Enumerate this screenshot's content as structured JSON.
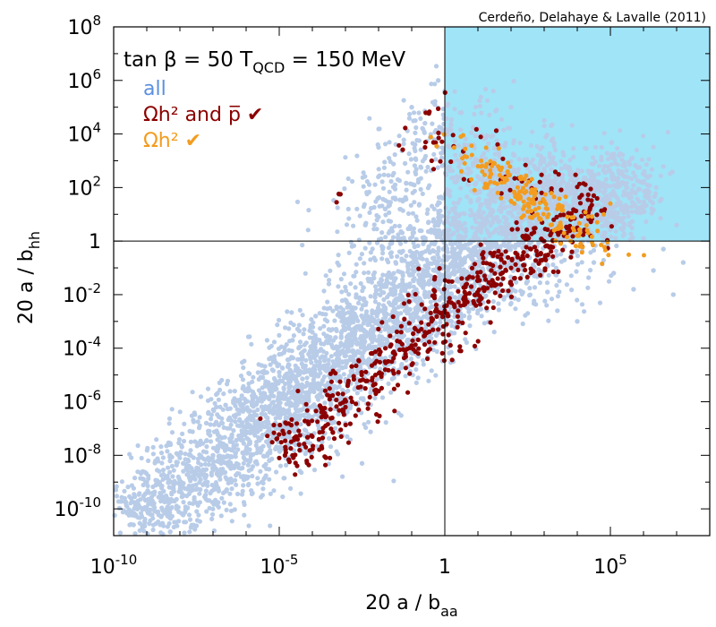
{
  "credit": "Cerdeño, Delahaye & Lavalle (2011)",
  "annotation_prefix": "tan β = 50  T",
  "annotation_sub": "QCD",
  "annotation_suffix": " = 150 MeV",
  "colors": {
    "all": "#b8cce8",
    "relic_and_pbar": "#8b0000",
    "relic": "#f39c1f",
    "region": "#a0e4f8",
    "legend_all": "#5b8fe0"
  },
  "chart_data": {
    "type": "scatter",
    "xlabel_main": "20 a / b",
    "xlabel_sub": "aa",
    "ylabel_main": "20 a / b",
    "ylabel_sub": "hh",
    "x_scale": "log",
    "y_scale": "log",
    "xlim": [
      1e-10,
      100000000.0
    ],
    "ylim": [
      1e-11,
      100000000.0
    ],
    "x_ticks": [
      {
        "value": 1e-10,
        "base": "10",
        "exp": "-10"
      },
      {
        "value": 1e-05,
        "base": "10",
        "exp": "-5"
      },
      {
        "value": 1,
        "base": "1",
        "exp": ""
      },
      {
        "value": 100000.0,
        "base": "10",
        "exp": "5"
      }
    ],
    "y_ticks": [
      {
        "value": 100000000.0,
        "base": "10",
        "exp": "8"
      },
      {
        "value": 1000000.0,
        "base": "10",
        "exp": "6"
      },
      {
        "value": 10000.0,
        "base": "10",
        "exp": "4"
      },
      {
        "value": 100.0,
        "base": "10",
        "exp": "2"
      },
      {
        "value": 1,
        "base": "1",
        "exp": ""
      },
      {
        "value": 0.01,
        "base": "10",
        "exp": "-2"
      },
      {
        "value": 0.0001,
        "base": "10",
        "exp": "-4"
      },
      {
        "value": 1e-06,
        "base": "10",
        "exp": "-6"
      },
      {
        "value": 1e-08,
        "base": "10",
        "exp": "-8"
      },
      {
        "value": 1e-10,
        "base": "10",
        "exp": "-10"
      }
    ],
    "reference_lines": {
      "x": 1,
      "y": 1
    },
    "highlight_region": {
      "x_min": 1,
      "x_max": 100000000.0,
      "y_min": 1,
      "y_max": 100000000.0
    },
    "legend_position": "top-left",
    "series": [
      {
        "name": "all",
        "legend_label": "all",
        "color": "#b8cce8",
        "trend": [
          [
            -9.5,
            -10.5
          ],
          [
            -8,
            -9.3
          ],
          [
            -6,
            -7.5
          ],
          [
            -4,
            -5.2
          ],
          [
            -2,
            -3.2
          ],
          [
            0,
            -1.2
          ],
          [
            2,
            0.8
          ],
          [
            3,
            2
          ],
          [
            4,
            2.3
          ],
          [
            6,
            1
          ]
        ],
        "spread_perp": 0.9,
        "fill_points": [
          [
            -5.2,
            -6.5
          ],
          [
            -4,
            -5.5
          ],
          [
            -2.5,
            -4
          ],
          [
            -1.5,
            -2
          ],
          [
            -1,
            2.5
          ],
          [
            0,
            4
          ],
          [
            1,
            3
          ],
          [
            2,
            1.5
          ],
          [
            3,
            -1
          ],
          [
            -1,
            -3.5
          ],
          [
            0.5,
            -1.5
          ],
          [
            1.5,
            -1
          ],
          [
            -2,
            1
          ],
          [
            -0.5,
            0.5
          ]
        ],
        "cloud_points": [
          [
            -9.8,
            -10.9
          ],
          [
            -9.4,
            -10.6
          ],
          [
            -8.9,
            -10.2
          ],
          [
            -8.5,
            -9.6
          ],
          [
            -8.2,
            -9.7
          ],
          [
            -7.6,
            -8.8
          ],
          [
            -7.9,
            -8.3
          ],
          [
            -7.3,
            -9.1
          ],
          [
            -7,
            -8.0
          ],
          [
            -6.8,
            -7.3
          ],
          [
            -6.5,
            -8.4
          ],
          [
            -6.2,
            -6.9
          ],
          [
            -6.0,
            -7.8
          ],
          [
            -5.7,
            -6.1
          ],
          [
            -5.4,
            -7.2
          ],
          [
            -5.1,
            -5.5
          ],
          [
            -4.8,
            -6.6
          ],
          [
            -4.5,
            -4.8
          ],
          [
            -4.2,
            -6.0
          ],
          [
            -3.9,
            -4.1
          ],
          [
            -3.6,
            -5.4
          ],
          [
            -3.3,
            -3.6
          ],
          [
            -3.0,
            -4.7
          ],
          [
            -2.7,
            -2.8
          ],
          [
            -2.4,
            -4.0
          ],
          [
            -2.1,
            -2.0
          ],
          [
            -1.8,
            -3.3
          ],
          [
            -1.5,
            -1.4
          ],
          [
            -1.2,
            -2.6
          ],
          [
            -0.9,
            -0.6
          ],
          [
            -0.6,
            -1.9
          ],
          [
            -0.3,
            0.3
          ],
          [
            0.0,
            -1.4
          ],
          [
            0.3,
            1.1
          ],
          [
            0.6,
            -0.7
          ],
          [
            0.9,
            1.8
          ],
          [
            1.2,
            -0.3
          ],
          [
            1.5,
            2.5
          ],
          [
            1.8,
            0.4
          ],
          [
            2.1,
            3.2
          ],
          [
            2.4,
            1.0
          ],
          [
            2.7,
            2.8
          ],
          [
            3.0,
            0.2
          ],
          [
            3.3,
            2.0
          ],
          [
            3.6,
            1.2
          ],
          [
            3.9,
            -0.4
          ],
          [
            4.2,
            1.6
          ],
          [
            4.5,
            -0.8
          ],
          [
            4.8,
            0.9
          ],
          [
            5.1,
            -1.2
          ],
          [
            5.4,
            0.5
          ],
          [
            5.7,
            -1.8
          ],
          [
            6.0,
            0.1
          ],
          [
            6.3,
            -1.1
          ],
          [
            6.6,
            -0.3
          ],
          [
            6.9,
            -2.0
          ],
          [
            7.2,
            -0.8
          ],
          [
            -1.8,
            1.2
          ],
          [
            -1.5,
            2.1
          ],
          [
            -1.2,
            2.9
          ],
          [
            -0.9,
            3.6
          ],
          [
            -0.6,
            4.4
          ],
          [
            -0.3,
            5.1
          ],
          [
            0.0,
            5.6
          ],
          [
            -0.2,
            6.0
          ],
          [
            0.5,
            4.8
          ],
          [
            1.0,
            4.2
          ],
          [
            -2.4,
            0.6
          ],
          [
            -2.8,
            -0.2
          ],
          [
            -3.2,
            -0.9
          ],
          [
            -3.5,
            -1.6
          ],
          [
            -2.0,
            3.5
          ],
          [
            -1.0,
            5.0
          ],
          [
            -3.9,
            -2.8
          ],
          [
            -4.6,
            -3.7
          ],
          [
            -5.3,
            -4.4
          ],
          [
            -6.1,
            -5.5
          ],
          [
            -6.9,
            -6.2
          ],
          [
            -7.7,
            -7.1
          ],
          [
            -8.3,
            -8.0
          ],
          [
            0.2,
            -3.0
          ],
          [
            1.0,
            -2.6
          ],
          [
            1.8,
            -2.1
          ],
          [
            2.5,
            -1.5
          ],
          [
            3.1,
            -1.9
          ],
          [
            -0.5,
            -3.8
          ],
          [
            -1.3,
            -4.6
          ],
          [
            -2.1,
            -5.3
          ],
          [
            -2.9,
            -6.2
          ],
          [
            -3.7,
            -7.0
          ],
          [
            -4.5,
            -7.6
          ],
          [
            -5.3,
            -8.2
          ],
          [
            -6.0,
            -8.8
          ],
          [
            -2.5,
            -8.3
          ],
          [
            3.4,
            -2.6
          ],
          [
            4.0,
            -3.0
          ],
          [
            -9.0,
            -9.0
          ],
          [
            -8.6,
            -9.1
          ],
          [
            -7.4,
            -7.6
          ],
          [
            2.0,
            5.0
          ],
          [
            3.0,
            4.5
          ],
          [
            5.5,
            2.0
          ],
          [
            6.5,
            1.5
          ],
          [
            7.0,
            0.6
          ],
          [
            -6.5,
            -6.6
          ],
          [
            -5.8,
            -5.9
          ],
          [
            -5.0,
            -4.9
          ],
          [
            -4.3,
            -4.3
          ],
          [
            -3.5,
            -3.3
          ],
          [
            -2.7,
            -2.5
          ],
          [
            -1.9,
            -1.7
          ],
          [
            -1.1,
            -0.9
          ],
          [
            -0.4,
            -0.1
          ],
          [
            0.4,
            0.6
          ],
          [
            1.3,
            1.3
          ],
          [
            2.2,
            2.1
          ],
          [
            3.0,
            2.7
          ],
          [
            3.8,
            2.5
          ],
          [
            4.6,
            2.2
          ],
          [
            5.2,
            1.4
          ],
          [
            0.6,
            3.6
          ],
          [
            1.4,
            3.9
          ],
          [
            -0.8,
            2.2
          ],
          [
            -1.6,
            0.0
          ],
          [
            -3.0,
            -2.2
          ],
          [
            -4.0,
            -3.4
          ],
          [
            -5.5,
            -5.1
          ],
          [
            -7.2,
            -6.8
          ]
        ]
      },
      {
        "name": "relic_and_pbar",
        "legend_label": "Ωh² and p̅ ✔",
        "color": "#8b0000",
        "trend": [
          [
            -5,
            -8
          ],
          [
            -3,
            -6
          ],
          [
            -1,
            -3.8
          ],
          [
            1,
            -1.5
          ],
          [
            2,
            -1
          ],
          [
            3,
            -0.3
          ],
          [
            4,
            0.8
          ],
          [
            4.5,
            1.5
          ]
        ],
        "spread_perp": 0.55,
        "extra_points": [
          [
            -1.2,
            3.7
          ],
          [
            -0.8,
            4.5
          ],
          [
            -0.5,
            3.2
          ],
          [
            0.2,
            3.8
          ],
          [
            1.5,
            3.0
          ],
          [
            2.0,
            2.5
          ],
          [
            2.5,
            2.2
          ],
          [
            3.2,
            1.8
          ],
          [
            3.5,
            2.5
          ],
          [
            4.0,
            2.0
          ],
          [
            -0.5,
            5.0
          ],
          [
            0.5,
            2.8
          ],
          [
            -3.5,
            1.5
          ],
          [
            0.0,
            3.5
          ],
          [
            3.0,
            2.3
          ],
          [
            1.0,
            4.0
          ],
          [
            2.8,
            1.5
          ],
          [
            4.2,
            1.0
          ],
          [
            -0.2,
            4.1
          ],
          [
            1.8,
            2.2
          ]
        ],
        "cloud_points": [
          [
            -5.0,
            -8.1
          ],
          [
            -4.8,
            -7.9
          ],
          [
            -4.6,
            -8.0
          ],
          [
            -4.4,
            -7.6
          ],
          [
            -4.2,
            -7.7
          ],
          [
            -4.0,
            -7.3
          ],
          [
            -3.8,
            -7.4
          ],
          [
            -3.6,
            -6.9
          ],
          [
            -3.4,
            -6.6
          ],
          [
            -3.2,
            -6.8
          ],
          [
            -3.0,
            -6.2
          ],
          [
            -2.8,
            -6.0
          ],
          [
            -2.6,
            -6.3
          ],
          [
            -2.4,
            -5.5
          ],
          [
            -2.2,
            -5.2
          ],
          [
            -2.0,
            -5.6
          ],
          [
            -1.8,
            -4.8
          ],
          [
            -1.6,
            -4.5
          ],
          [
            -1.4,
            -4.9
          ],
          [
            -1.2,
            -4.1
          ],
          [
            -1.0,
            -3.9
          ],
          [
            -0.8,
            -4.2
          ],
          [
            -0.6,
            -3.4
          ],
          [
            -0.4,
            -3.0
          ],
          [
            -0.2,
            -3.3
          ],
          [
            0.0,
            -2.6
          ],
          [
            0.2,
            -2.3
          ],
          [
            0.4,
            -2.6
          ],
          [
            0.6,
            -1.9
          ],
          [
            0.8,
            -1.7
          ],
          [
            1.0,
            -2.0
          ],
          [
            1.2,
            -1.3
          ],
          [
            1.4,
            -1.1
          ],
          [
            1.6,
            -1.4
          ],
          [
            1.8,
            -0.8
          ],
          [
            2.0,
            -1.0
          ],
          [
            2.2,
            -0.6
          ],
          [
            2.4,
            -0.9
          ],
          [
            2.6,
            -0.3
          ],
          [
            2.8,
            -0.5
          ],
          [
            3.0,
            0.0
          ],
          [
            3.2,
            -0.2
          ],
          [
            3.4,
            0.4
          ],
          [
            3.6,
            0.2
          ],
          [
            3.8,
            0.8
          ],
          [
            4.0,
            0.5
          ],
          [
            4.2,
            1.1
          ],
          [
            4.4,
            0.9
          ]
        ]
      },
      {
        "name": "relic",
        "legend_label": "Ωh² ✔",
        "color": "#f39c1f",
        "center": [
          2.8,
          1.5
        ],
        "cloud_points": [
          [
            0.5,
            2.6
          ],
          [
            0.8,
            2.3
          ],
          [
            1.0,
            2.8
          ],
          [
            1.2,
            2.0
          ],
          [
            1.4,
            2.5
          ],
          [
            1.6,
            1.8
          ],
          [
            1.8,
            2.2
          ],
          [
            2.0,
            1.5
          ],
          [
            2.2,
            2.0
          ],
          [
            2.4,
            1.3
          ],
          [
            2.6,
            1.8
          ],
          [
            2.8,
            1.0
          ],
          [
            3.0,
            1.5
          ],
          [
            3.2,
            0.6
          ],
          [
            3.4,
            1.2
          ],
          [
            3.6,
            0.3
          ],
          [
            3.8,
            0.0
          ],
          [
            4.0,
            0.2
          ],
          [
            3.5,
            -0.1
          ],
          [
            3.3,
            0.4
          ],
          [
            2.9,
            0.8
          ],
          [
            2.5,
            1.1
          ],
          [
            2.1,
            1.4
          ],
          [
            1.7,
            1.6
          ],
          [
            1.3,
            2.1
          ],
          [
            0.9,
            1.9
          ],
          [
            0.6,
            2.9
          ],
          [
            1.1,
            3.0
          ],
          [
            1.5,
            2.9
          ],
          [
            4.3,
            0.4
          ],
          [
            4.8,
            1.0
          ],
          [
            5.0,
            1.4
          ],
          [
            4.6,
            0.7
          ],
          [
            3.7,
            0.9
          ],
          [
            3.9,
            0.4
          ],
          [
            4.1,
            -0.1
          ],
          [
            1.9,
            2.6
          ],
          [
            2.3,
            2.4
          ],
          [
            2.7,
            1.4
          ],
          [
            3.1,
            0.9
          ]
        ]
      }
    ]
  }
}
